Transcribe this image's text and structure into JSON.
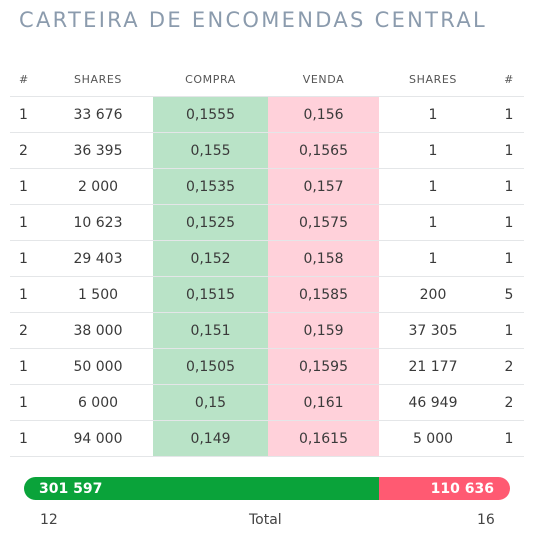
{
  "title": "CARTEIRA DE ENCOMENDAS CENTRAL",
  "headers": [
    "#",
    "SHARES",
    "COMPRA",
    "VENDA",
    "SHARES",
    "#"
  ],
  "rows": [
    {
      "bid_count": "1",
      "bid_shares": "33 676",
      "bid": "0,1555",
      "ask": "0,156",
      "ask_shares": "1",
      "ask_count": "1"
    },
    {
      "bid_count": "2",
      "bid_shares": "36 395",
      "bid": "0,155",
      "ask": "0,1565",
      "ask_shares": "1",
      "ask_count": "1"
    },
    {
      "bid_count": "1",
      "bid_shares": "2 000",
      "bid": "0,1535",
      "ask": "0,157",
      "ask_shares": "1",
      "ask_count": "1"
    },
    {
      "bid_count": "1",
      "bid_shares": "10 623",
      "bid": "0,1525",
      "ask": "0,1575",
      "ask_shares": "1",
      "ask_count": "1"
    },
    {
      "bid_count": "1",
      "bid_shares": "29 403",
      "bid": "0,152",
      "ask": "0,158",
      "ask_shares": "1",
      "ask_count": "1"
    },
    {
      "bid_count": "1",
      "bid_shares": "1 500",
      "bid": "0,1515",
      "ask": "0,1585",
      "ask_shares": "200",
      "ask_count": "5"
    },
    {
      "bid_count": "2",
      "bid_shares": "38 000",
      "bid": "0,151",
      "ask": "0,159",
      "ask_shares": "37 305",
      "ask_count": "1"
    },
    {
      "bid_count": "1",
      "bid_shares": "50 000",
      "bid": "0,1505",
      "ask": "0,1595",
      "ask_shares": "21 177",
      "ask_count": "2"
    },
    {
      "bid_count": "1",
      "bid_shares": "6 000",
      "bid": "0,15",
      "ask": "0,161",
      "ask_shares": "46 949",
      "ask_count": "2"
    },
    {
      "bid_count": "1",
      "bid_shares": "94 000",
      "bid": "0,149",
      "ask": "0,1615",
      "ask_shares": "5 000",
      "ask_count": "1"
    }
  ],
  "totals": {
    "bid_shares": "301 597",
    "ask_shares": "110 636",
    "bid_orders": "12",
    "label": "Total",
    "ask_orders": "16"
  },
  "colors": {
    "title": "#8b9bad",
    "bid_cell": "#b9e3c7",
    "ask_cell": "#ffd1da",
    "bid_bar": "#0aa33a",
    "ask_bar": "#ff5a72"
  }
}
